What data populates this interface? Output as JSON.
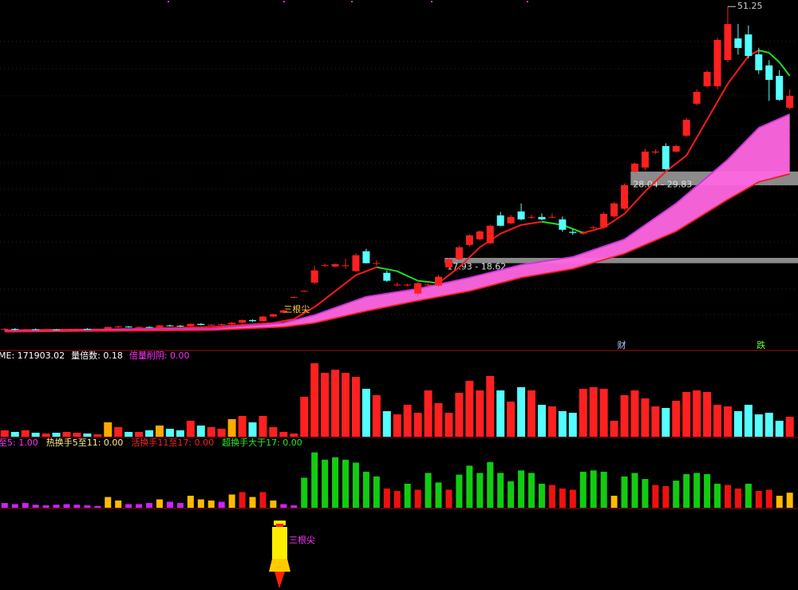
{
  "chart_data": {
    "type": "candlestick",
    "xlim": [
      -0.45,
      76.8
    ],
    "ylim": [
      6.7,
      52.1
    ],
    "up_color": "#ff2020",
    "down_color": "#55ffff",
    "candles": {
      "open": [
        9.3,
        9.4,
        9.3,
        9.35,
        9.3,
        9.32,
        9.3,
        9.35,
        9.4,
        9.38,
        9.4,
        9.65,
        9.7,
        9.6,
        9.65,
        9.6,
        9.85,
        9.8,
        9.75,
        10.05,
        9.9,
        9.95,
        10.0,
        10.2,
        10.55,
        10.4,
        11.0,
        11.5,
        13.5,
        14.3,
        15.4,
        17.6,
        17.5,
        17.6,
        16.9,
        19.48,
        17.9,
        16.68,
        15.1,
        15.1,
        13.99,
        15.1,
        15.03,
        17.4,
        18.44,
        20.3,
        21.03,
        20.51,
        24.14,
        23.1,
        24.65,
        23.9,
        23.93,
        23.9,
        23.62,
        22.0,
        21.8,
        22.5,
        22.58,
        24.0,
        25.0,
        29.83,
        30.35,
        32.3,
        33.14,
        32.42,
        34.49,
        38.63,
        40.9,
        40.9,
        44.32,
        47.11,
        47.63,
        45.04,
        43.6,
        42.25,
        38.11
      ],
      "high": [
        9.5,
        9.5,
        9.4,
        9.45,
        9.4,
        9.4,
        9.4,
        9.45,
        9.5,
        9.45,
        9.7,
        9.8,
        9.75,
        9.7,
        9.75,
        9.9,
        9.95,
        9.9,
        10.1,
        10.15,
        10.0,
        10.1,
        10.25,
        10.6,
        10.65,
        11.1,
        11.4,
        11.9,
        13.6,
        14.4,
        17.6,
        17.9,
        17.9,
        18.5,
        19.2,
        19.8,
        18.3,
        17.0,
        15.4,
        15.3,
        15.5,
        15.3,
        16.4,
        18.6,
        20.2,
        21.7,
        22.2,
        22.9,
        24.6,
        24.2,
        25.69,
        24.2,
        24.4,
        24.4,
        24.0,
        22.3,
        22.1,
        22.8,
        24.6,
        25.9,
        28.3,
        31.0,
        32.8,
        32.7,
        33.5,
        33.3,
        36.8,
        40.5,
        43.0,
        47.2,
        51.25,
        49.0,
        48.8,
        45.9,
        44.3,
        43.0,
        40.5
      ],
      "low": [
        9.2,
        9.2,
        9.2,
        9.25,
        9.2,
        9.25,
        9.2,
        9.3,
        9.3,
        9.3,
        9.35,
        9.5,
        9.55,
        9.5,
        9.55,
        9.55,
        9.7,
        9.65,
        9.7,
        9.85,
        9.8,
        9.85,
        9.9,
        10.1,
        10.3,
        10.35,
        10.9,
        11.4,
        13.4,
        14.2,
        15.2,
        17.4,
        17.4,
        17.2,
        16.8,
        17.9,
        17.6,
        15.5,
        14.9,
        14.9,
        13.8,
        14.9,
        14.9,
        17.3,
        18.3,
        20.1,
        20.9,
        20.4,
        22.7,
        23.0,
        23.5,
        23.7,
        23.5,
        23.8,
        22.0,
        21.6,
        21.6,
        22.4,
        22.4,
        23.8,
        24.8,
        29.7,
        30.0,
        32.1,
        30.0,
        32.3,
        34.3,
        38.4,
        40.7,
        40.5,
        44.0,
        45.0,
        44.5,
        42.5,
        39.0,
        39.0,
        37.9
      ],
      "close": [
        9.4,
        9.3,
        9.35,
        9.3,
        9.32,
        9.3,
        9.35,
        9.4,
        9.38,
        9.4,
        9.65,
        9.7,
        9.6,
        9.65,
        9.6,
        9.85,
        9.8,
        9.75,
        10.05,
        9.9,
        9.95,
        10.0,
        10.2,
        10.55,
        10.4,
        11.0,
        11.3,
        11.8,
        13.55,
        14.35,
        17.0,
        17.7,
        17.8,
        17.65,
        18.96,
        17.93,
        17.95,
        15.65,
        15.15,
        15.15,
        15.34,
        15.15,
        16.17,
        18.44,
        20.0,
        21.55,
        22.06,
        22.79,
        22.79,
        23.93,
        23.62,
        23.93,
        23.62,
        23.93,
        22.27,
        21.86,
        21.86,
        22.58,
        24.34,
        25.69,
        28.07,
        30.86,
        32.42,
        32.42,
        30.14,
        33.14,
        36.56,
        40.18,
        42.77,
        46.91,
        48.98,
        45.87,
        44.83,
        42.97,
        41.73,
        39.14,
        39.66
      ]
    },
    "lines": [
      {
        "color": "#ff1a1a",
        "fall_color": "#22dd22",
        "x": [
          0,
          10,
          20,
          26,
          28,
          30,
          32,
          34,
          36,
          38,
          40,
          42,
          44,
          46,
          48,
          50,
          52,
          54,
          56,
          58,
          60,
          62,
          64,
          66,
          68,
          70,
          72,
          73,
          74,
          75,
          76
        ],
        "values": [
          9.23,
          9.34,
          9.65,
          10.17,
          10.68,
          12.23,
          14.3,
          16.37,
          17.41,
          16.89,
          15.65,
          15.34,
          17.41,
          20.0,
          21.76,
          22.9,
          23.31,
          22.9,
          21.86,
          22.58,
          24.34,
          27.24,
          29.83,
          31.9,
          36.56,
          41.21,
          44.83,
          45.56,
          45.25,
          44.01,
          42.25
        ]
      },
      {
        "color": "#cc33dd",
        "x": [
          0,
          20,
          27,
          30,
          35,
          40,
          45,
          50,
          55,
          60,
          65,
          70,
          73,
          76
        ],
        "values": [
          9.13,
          9.44,
          10.17,
          11.2,
          13.58,
          14.61,
          16.06,
          17.72,
          18.75,
          21.03,
          25.69,
          31.38,
          35.52,
          37.28
        ]
      },
      {
        "color": "#e82020",
        "x": [
          0,
          20,
          27,
          30,
          35,
          40,
          45,
          50,
          55,
          60,
          65,
          70,
          73,
          76
        ],
        "values": [
          9.02,
          9.23,
          9.65,
          10.17,
          11.72,
          13.06,
          14.3,
          16.06,
          17.2,
          19.17,
          22.06,
          26.2,
          28.48,
          29.52
        ]
      }
    ],
    "ribbon_color": "#ff66e0",
    "bands": [
      {
        "low": 28.04,
        "high": 29.83,
        "start": 60.6,
        "label": "28.04 - 29.83"
      },
      {
        "low": 17.93,
        "high": 18.62,
        "start": 42.6,
        "label": "17.93 - 18.62"
      }
    ],
    "annotations": [
      {
        "text": "三根尖",
        "index": 27,
        "price": 11.9,
        "color": "#ffcc33"
      },
      {
        "text": "财",
        "index": 59.3,
        "price": 7.2,
        "color": "#aaccff"
      },
      {
        "text": "跌",
        "index": 72.8,
        "price": 7.2,
        "color": "#66ff33"
      }
    ],
    "volume": {
      "texts": [
        {
          "text": "ME: 171903.02",
          "color": "#ffffff"
        },
        {
          "text": "量倍数: 0.18",
          "color": "#ffffff"
        },
        {
          "text": "倍量削阴: 0.00",
          "color": "#ff33ff"
        }
      ],
      "vlim": [
        0,
        100
      ],
      "highlight": [
        10,
        15,
        22
      ],
      "highlight_color": "#ffaa00",
      "values": [
        8,
        6,
        8,
        5,
        4,
        5,
        6,
        5,
        4,
        3,
        18,
        12,
        6,
        6,
        8,
        14,
        10,
        8,
        20,
        14,
        12,
        10,
        22,
        26,
        18,
        26,
        12,
        6,
        4,
        50,
        92,
        80,
        84,
        80,
        75,
        60,
        52,
        32,
        28,
        40,
        30,
        58,
        42,
        30,
        55,
        70,
        58,
        76,
        58,
        44,
        62,
        58,
        40,
        38,
        32,
        30,
        60,
        62,
        60,
        20,
        52,
        58,
        48,
        38,
        36,
        45,
        56,
        58,
        56,
        40,
        38,
        32,
        40,
        28,
        30,
        20,
        25
      ]
    },
    "turnover": {
      "texts": [
        {
          "text": "至5: 1.00",
          "color": "#ff33ff"
        },
        {
          "text": "热换手5至11: 0.00",
          "color": "#ffee88"
        },
        {
          "text": "活换手11至17: 0.00",
          "color": "#ff2020"
        },
        {
          "text": "超换手大于17: 0.00",
          "color": "#22ee22"
        }
      ],
      "tlim": [
        0,
        40
      ],
      "levels": [
        5,
        11,
        17
      ],
      "level_colors": [
        "#cc22ff",
        "#ffbb00",
        "#ee1111",
        "#11cc11"
      ],
      "values": [
        3.4,
        2.6,
        3.4,
        2.2,
        1.7,
        2.2,
        2.6,
        2.2,
        1.7,
        1.3,
        7.7,
        5.2,
        2.6,
        2.6,
        3.4,
        6,
        4.3,
        3.4,
        8.6,
        6,
        5.2,
        4.3,
        9.5,
        11.2,
        7.7,
        11.2,
        5.2,
        2.6,
        1.7,
        21.5,
        39.6,
        34.4,
        36.1,
        34.4,
        32.3,
        25.8,
        22.4,
        13.8,
        12,
        17.2,
        12.9,
        24.9,
        18.1,
        12.9,
        23.7,
        30.1,
        24.9,
        32.7,
        24.9,
        18.9,
        26.7,
        24.9,
        17.2,
        16.3,
        13.8,
        12.9,
        25.8,
        26.7,
        25.8,
        8.6,
        22.4,
        24.9,
        20.6,
        16.3,
        15.5,
        19.4,
        24.1,
        24.9,
        24.1,
        17.2,
        16.3,
        13.8,
        17.2,
        12,
        12.9,
        8.6,
        10.8
      ]
    },
    "rocket_label": "三根尖"
  }
}
